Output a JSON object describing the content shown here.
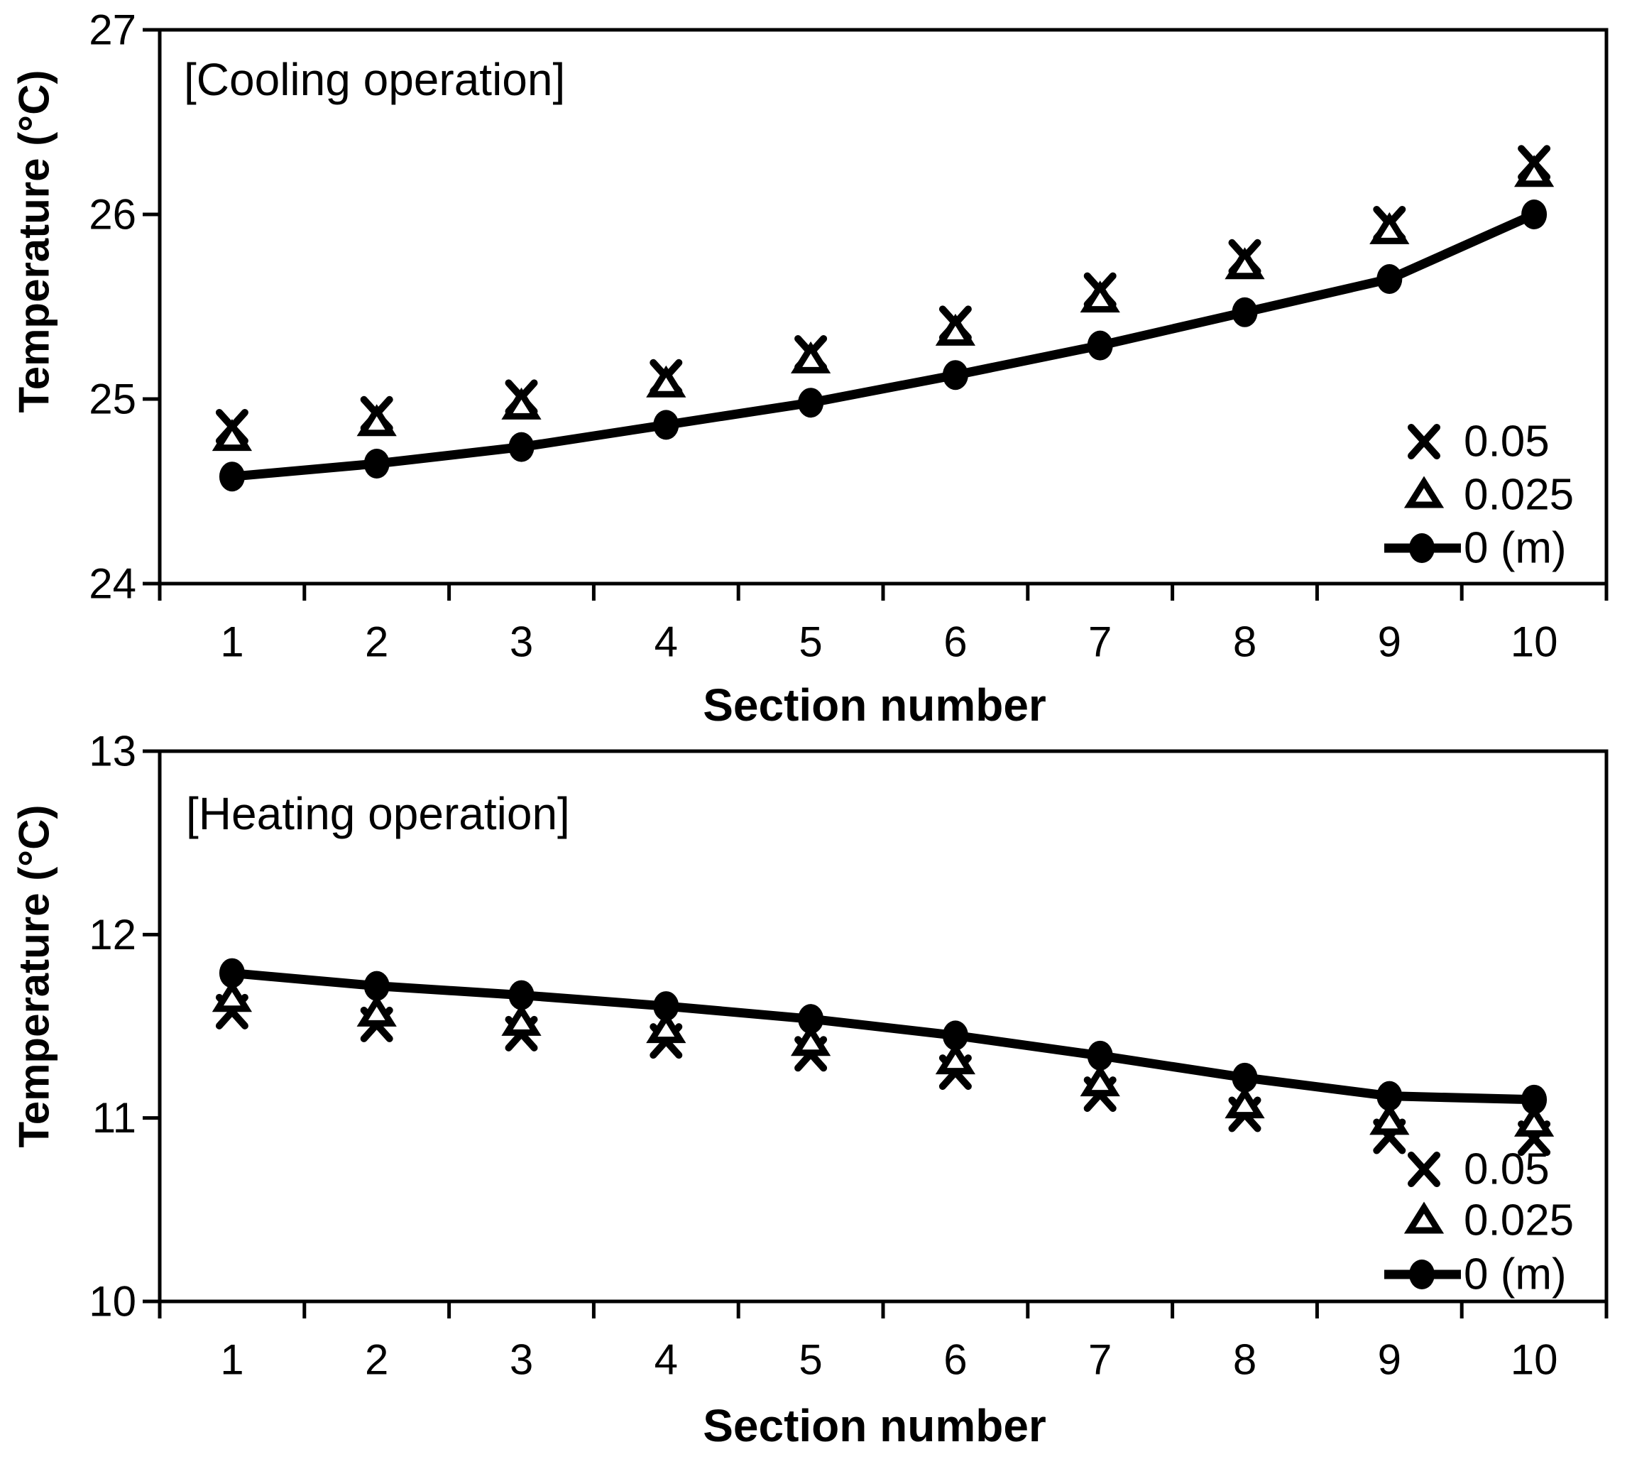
{
  "page": {
    "background_color": "#ffffff",
    "ink_color": "#000000",
    "description": "Two stacked temperature-vs-section-number charts"
  },
  "chart_data": [
    {
      "type": "line",
      "title": "[Cooling operation]",
      "xlabel": "Section number",
      "ylabel": "Temperature (°C)",
      "ylim": [
        24,
        27
      ],
      "y_ticks": [
        "27",
        "26",
        "25",
        "24"
      ],
      "categories": [
        "1",
        "2",
        "3",
        "4",
        "5",
        "6",
        "7",
        "8",
        "9",
        "10"
      ],
      "grid": false,
      "legend_position": "inside-lower-right",
      "series": [
        {
          "name": "0.05",
          "marker": "x-marker",
          "line": false,
          "values": [
            24.85,
            24.92,
            25.01,
            25.12,
            25.25,
            25.41,
            25.59,
            25.77,
            25.95,
            26.28
          ]
        },
        {
          "name": "0.025",
          "marker": "triangle-marker",
          "line": false,
          "values": [
            24.79,
            24.87,
            24.96,
            25.08,
            25.21,
            25.36,
            25.54,
            25.72,
            25.91,
            26.22
          ]
        },
        {
          "name": "0 (m)",
          "marker": "filled-circle-marker",
          "line": true,
          "values": [
            24.58,
            24.65,
            24.74,
            24.86,
            24.98,
            25.13,
            25.29,
            25.47,
            25.65,
            26.0
          ]
        }
      ]
    },
    {
      "type": "line",
      "title": "[Heating operation]",
      "xlabel": "Section number",
      "ylabel": "Temperature (°C)",
      "ylim": [
        10,
        13
      ],
      "y_ticks": [
        "13",
        "12",
        "11",
        "10"
      ],
      "categories": [
        "1",
        "2",
        "3",
        "4",
        "5",
        "6",
        "7",
        "8",
        "9",
        "10"
      ],
      "grid": false,
      "legend_position": "inside-lower-right",
      "series": [
        {
          "name": "0.05",
          "marker": "x-marker",
          "line": false,
          "values": [
            11.58,
            11.51,
            11.46,
            11.42,
            11.35,
            11.25,
            11.13,
            11.02,
            10.9,
            10.89
          ]
        },
        {
          "name": "0.025",
          "marker": "triangle-marker",
          "line": false,
          "values": [
            11.65,
            11.57,
            11.52,
            11.48,
            11.41,
            11.31,
            11.19,
            11.07,
            10.98,
            10.97
          ]
        },
        {
          "name": "0 (m)",
          "marker": "filled-circle-marker",
          "line": true,
          "values": [
            11.79,
            11.72,
            11.67,
            11.61,
            11.54,
            11.45,
            11.34,
            11.22,
            11.12,
            11.1
          ]
        }
      ]
    }
  ]
}
